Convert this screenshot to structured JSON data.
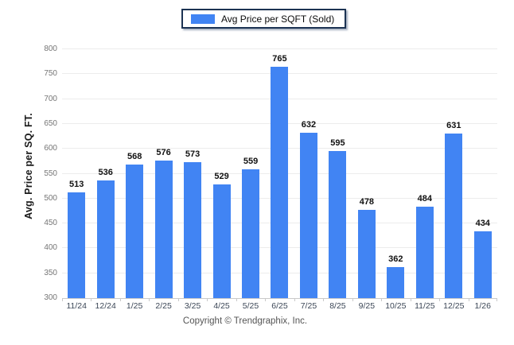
{
  "legend": {
    "label": "Avg Price per SQFT (Sold)"
  },
  "y_axis": {
    "title": "Avg. Price per SQ. FT."
  },
  "footer": {
    "text": "Copyright © Trendgraphix, Inc."
  },
  "colors": {
    "bar": "#4184f3",
    "gridline": "#ececec",
    "axis_line": "#c9c9c9",
    "y_tick_text": "#757575",
    "x_tick_text": "#3c4757",
    "value_label": "#111111",
    "legend_border": "#1c3353",
    "footer_text": "#555555"
  },
  "chart_data": {
    "type": "bar",
    "title": "Avg Price per SQFT (Sold)",
    "legend_entries": [
      "Avg Price per SQFT (Sold)"
    ],
    "legend_position": "top-center",
    "categories": [
      "11/24",
      "12/24",
      "1/25",
      "2/25",
      "3/25",
      "4/25",
      "5/25",
      "6/25",
      "7/25",
      "8/25",
      "9/25",
      "10/25",
      "11/25",
      "12/25",
      "1/26"
    ],
    "values": [
      513,
      536,
      568,
      576,
      573,
      529,
      559,
      765,
      632,
      595,
      478,
      362,
      484,
      631,
      434
    ],
    "xlabel": "",
    "ylabel": "Avg. Price per SQ. FT.",
    "ylim": [
      300,
      800
    ],
    "ytick_step": 50,
    "grid": true,
    "value_labels_shown": true,
    "footnote": "Copyright © Trendgraphix, Inc."
  }
}
